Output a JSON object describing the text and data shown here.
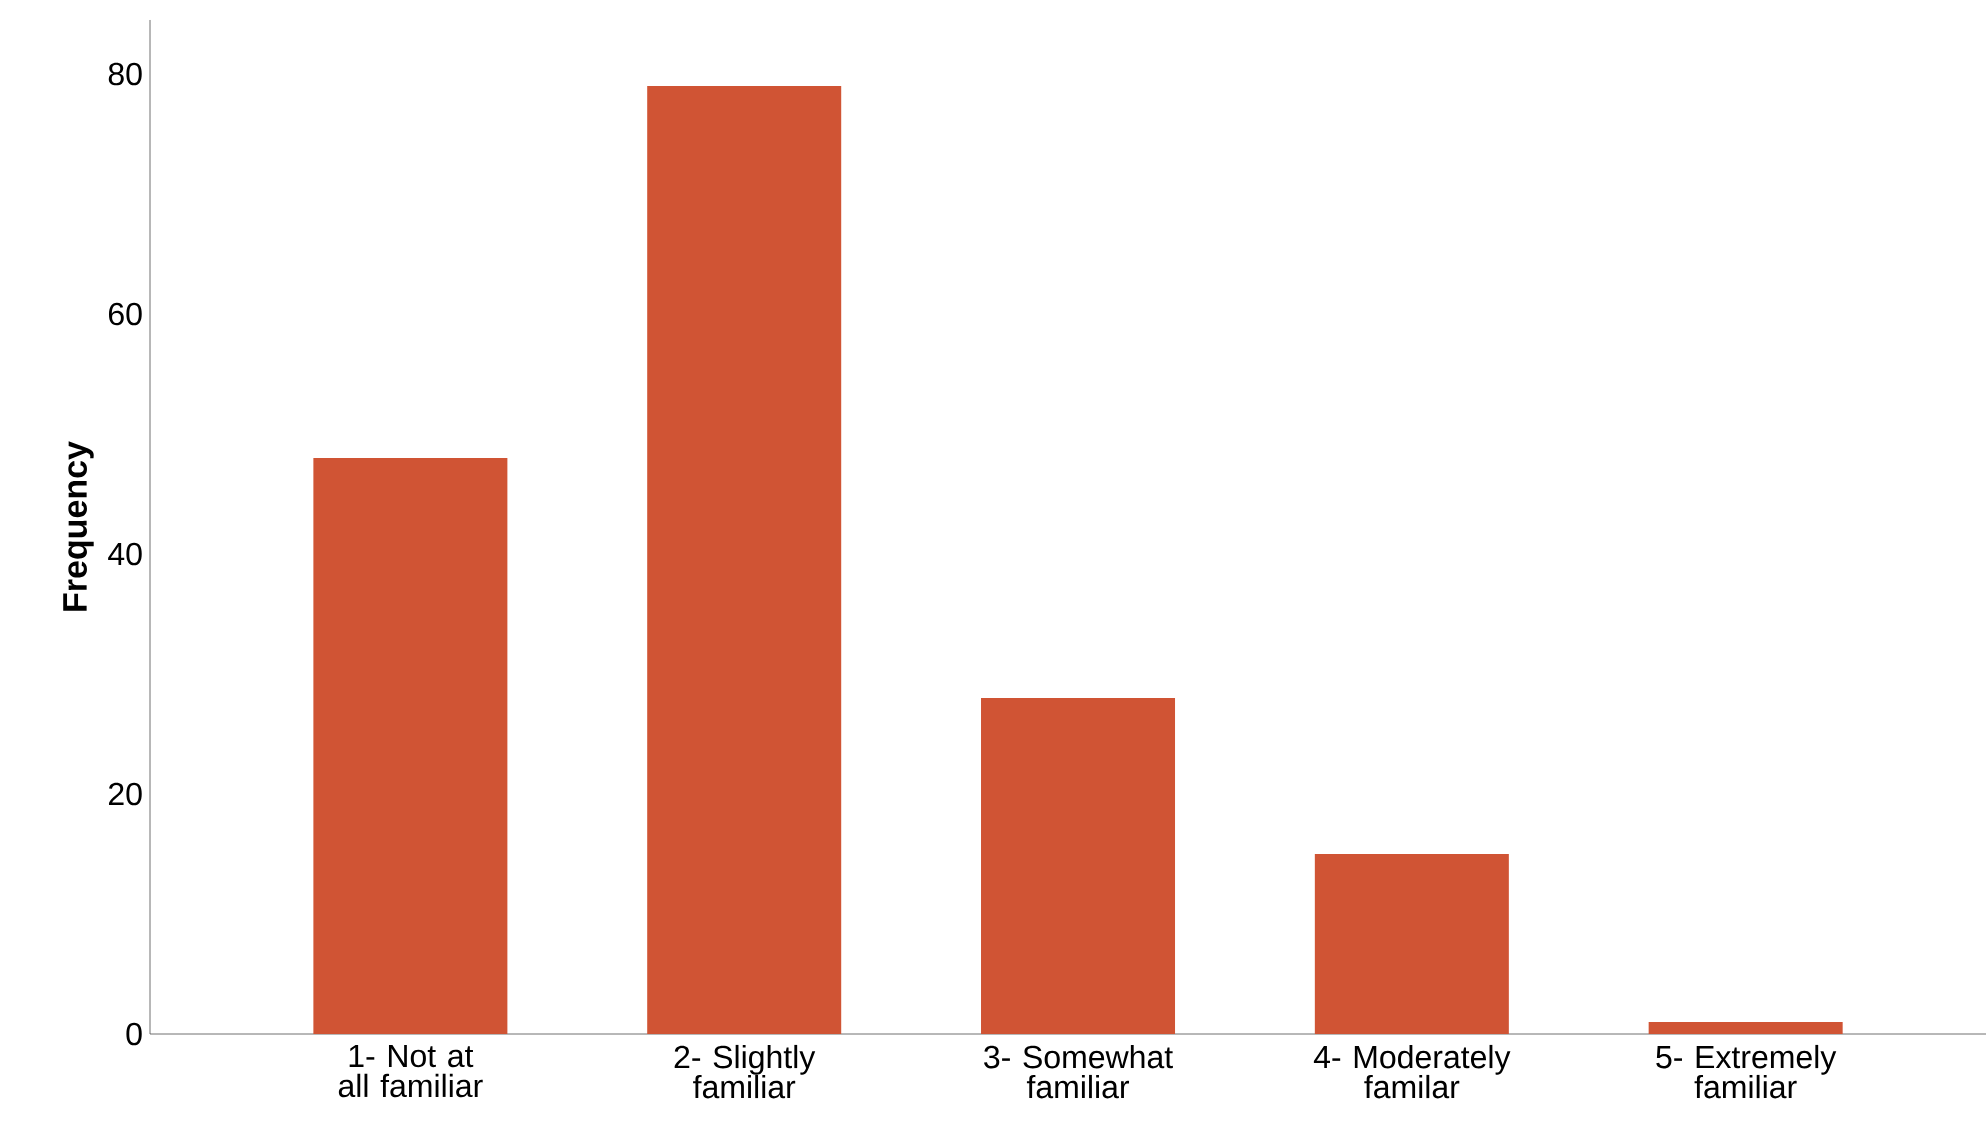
{
  "chart_data": {
    "type": "bar",
    "ylabel": "Frequency",
    "categories": [
      "1- Not at all familiar",
      "2- Slightly familiar",
      "3- Somewhat familiar",
      "4- Moderately familar",
      "5- Extremely familiar"
    ],
    "values": [
      48,
      79,
      28,
      15,
      1
    ],
    "color": "#d05434",
    "ylim": [
      0,
      84.5
    ],
    "yticks": [
      0,
      20,
      40,
      60,
      80
    ],
    "grid": false
  }
}
